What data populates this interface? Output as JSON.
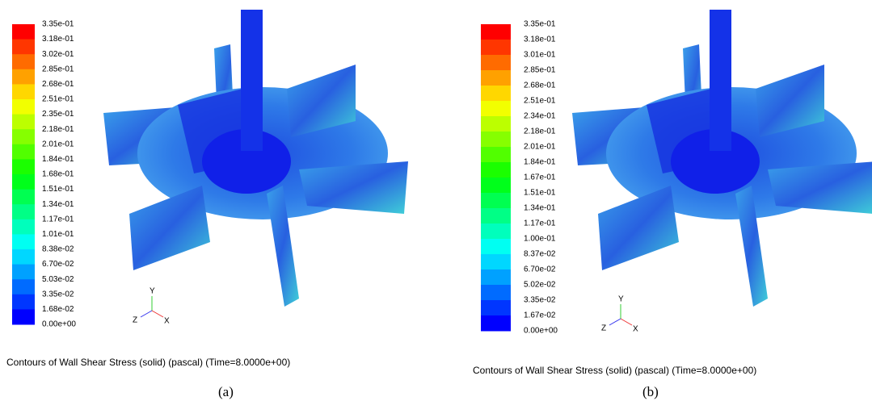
{
  "panels": [
    {
      "colorbar_labels": [
        "3.35e-01",
        "3.18e-01",
        "3.02e-01",
        "2.85e-01",
        "2.68e-01",
        "2.51e-01",
        "2.35e-01",
        "2.18e-01",
        "2.01e-01",
        "1.84e-01",
        "1.68e-01",
        "1.51e-01",
        "1.34e-01",
        "1.17e-01",
        "1.01e-01",
        "8.38e-02",
        "6.70e-02",
        "5.03e-02",
        "3.35e-02",
        "1.68e-02",
        "0.00e+00"
      ],
      "axes": {
        "y": "Y",
        "z": "Z",
        "x": "X"
      },
      "caption": "Contours of Wall Shear Stress (solid)  (pascal)  (Time=8.0000e+00)",
      "label": "(a)"
    },
    {
      "colorbar_labels": [
        "3.35e-01",
        "3.18e-01",
        "3.01e-01",
        "2.85e-01",
        "2.68e-01",
        "2.51e-01",
        "2.34e-01",
        "2.18e-01",
        "2.01e-01",
        "1.84e-01",
        "1.67e-01",
        "1.51e-01",
        "1.34e-01",
        "1.17e-01",
        "1.00e-01",
        "8.37e-02",
        "6.70e-02",
        "5.02e-02",
        "3.35e-02",
        "1.67e-02",
        "0.00e+00"
      ],
      "axes": {
        "y": "Y",
        "z": "Z",
        "x": "X"
      },
      "caption": "Contours of Wall Shear Stress (solid)  (pascal)  (Time=8.0000e+00)",
      "label": "(b)"
    }
  ]
}
